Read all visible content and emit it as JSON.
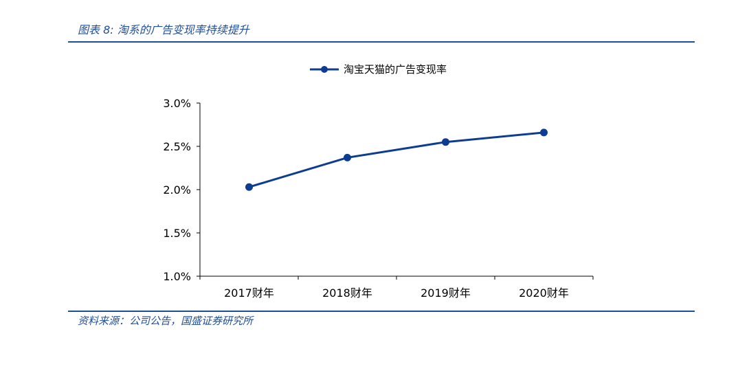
{
  "caption": "图表 8:  淘系的广告变现率持续提升",
  "source": "资料来源：公司公告，国盛证券研究所",
  "colors": {
    "accent": "#1f4e99",
    "series": "#0d3d91"
  },
  "chart_data": {
    "type": "line",
    "categories": [
      "2017财年",
      "2018财年",
      "2019财年",
      "2020财年"
    ],
    "series": [
      {
        "name": "淘宝天猫的广告变现率",
        "values": [
          2.03,
          2.37,
          2.55,
          2.66
        ]
      }
    ],
    "yticks": [
      "3.0%",
      "2.5%",
      "2.0%",
      "1.5%",
      "1.0%"
    ],
    "ylim": [
      1.0,
      3.0
    ],
    "legend": "top-center",
    "grid": false
  }
}
